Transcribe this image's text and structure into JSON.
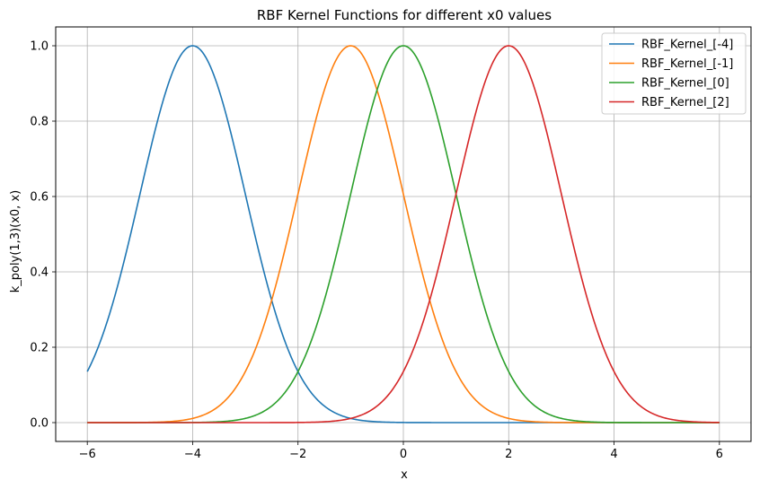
{
  "chart_data": {
    "type": "line",
    "title": "RBF Kernel Functions for different x0 values",
    "xlabel": "x",
    "ylabel": "k_poly(1,3)(x0, x)",
    "xlim": [
      -6.6,
      6.6
    ],
    "ylim": [
      -0.05,
      1.05
    ],
    "xticks": [
      -6,
      -4,
      -2,
      0,
      2,
      4,
      6
    ],
    "xtick_labels": [
      "−6",
      "−4",
      "−2",
      "0",
      "2",
      "4",
      "6"
    ],
    "yticks": [
      0.0,
      0.2,
      0.4,
      0.6,
      0.8,
      1.0
    ],
    "ytick_labels": [
      "0.0",
      "0.2",
      "0.4",
      "0.6",
      "0.8",
      "1.0"
    ],
    "grid": true,
    "legend_position": "top-right",
    "x_range": [
      -6,
      6
    ],
    "series": [
      {
        "name": "RBF_Kernel_[-4]",
        "center": -4,
        "color": "#1f77b4"
      },
      {
        "name": "RBF_Kernel_[-1]",
        "center": -1,
        "color": "#ff7f0e"
      },
      {
        "name": "RBF_Kernel_[0]",
        "center": 0,
        "color": "#2ca02c"
      },
      {
        "name": "RBF_Kernel_[2]",
        "center": 2,
        "color": "#d62728"
      }
    ]
  }
}
